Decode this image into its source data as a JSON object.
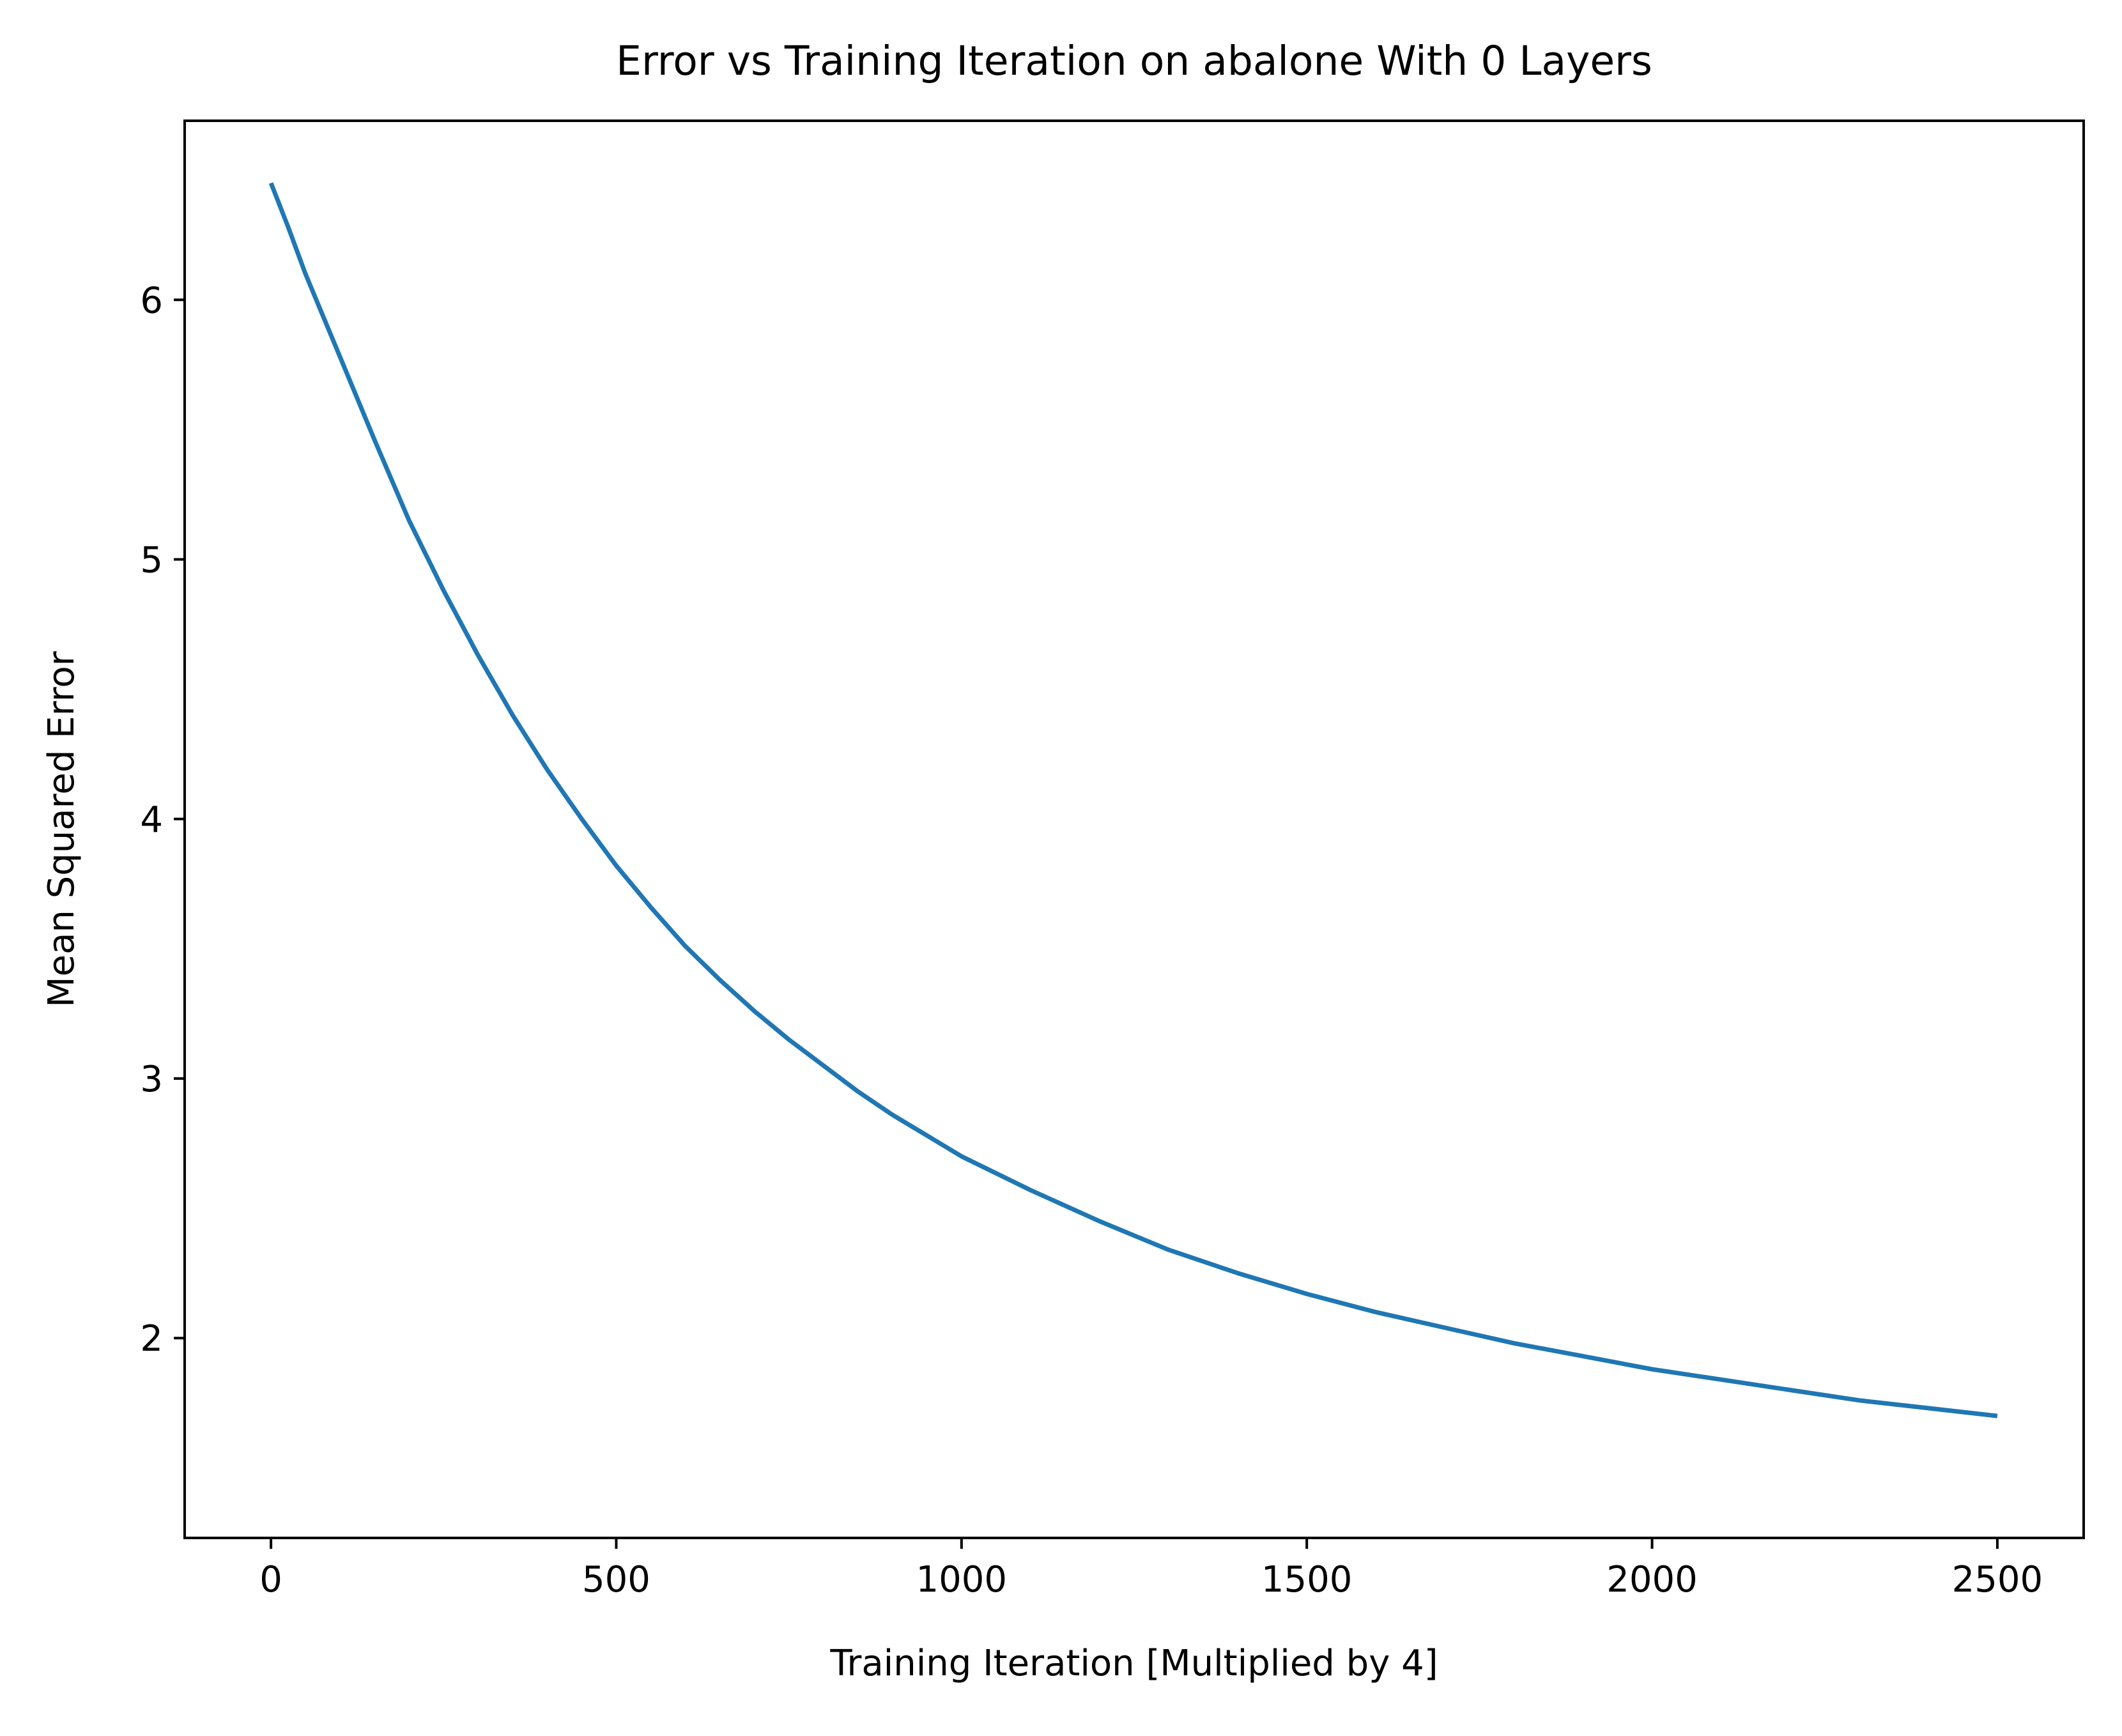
{
  "chart_data": {
    "type": "line",
    "title": "Error vs Training Iteration on abalone With 0 Layers",
    "xlabel": "Training Iteration [Multiplied by 4]",
    "ylabel": "Mean Squared Error",
    "xlim": [
      -125,
      2625
    ],
    "ylim": [
      1.23,
      6.69
    ],
    "xticks": [
      0,
      500,
      1000,
      1500,
      2000,
      2500
    ],
    "yticks": [
      2,
      3,
      4,
      5,
      6
    ],
    "xtick_labels": [
      "0",
      "500",
      "1000",
      "1500",
      "2000",
      "2500"
    ],
    "ytick_labels": [
      "2",
      "3",
      "4",
      "5",
      "6"
    ],
    "grid": false,
    "legend": "none",
    "series": [
      {
        "color": "#1f77b4",
        "x": [
          0,
          25,
          50,
          100,
          150,
          200,
          250,
          300,
          350,
          400,
          450,
          500,
          550,
          600,
          650,
          700,
          750,
          800,
          850,
          900,
          950,
          1000,
          1100,
          1200,
          1300,
          1400,
          1500,
          1600,
          1700,
          1800,
          1900,
          2000,
          2100,
          2200,
          2300,
          2400,
          2500
        ],
        "values": [
          6.45,
          6.28,
          6.1,
          5.78,
          5.46,
          5.15,
          4.88,
          4.63,
          4.4,
          4.19,
          4.0,
          3.82,
          3.66,
          3.51,
          3.38,
          3.26,
          3.15,
          3.05,
          2.95,
          2.86,
          2.78,
          2.7,
          2.57,
          2.45,
          2.34,
          2.25,
          2.17,
          2.1,
          2.04,
          1.98,
          1.93,
          1.88,
          1.84,
          1.8,
          1.76,
          1.73,
          1.7
        ]
      }
    ]
  }
}
